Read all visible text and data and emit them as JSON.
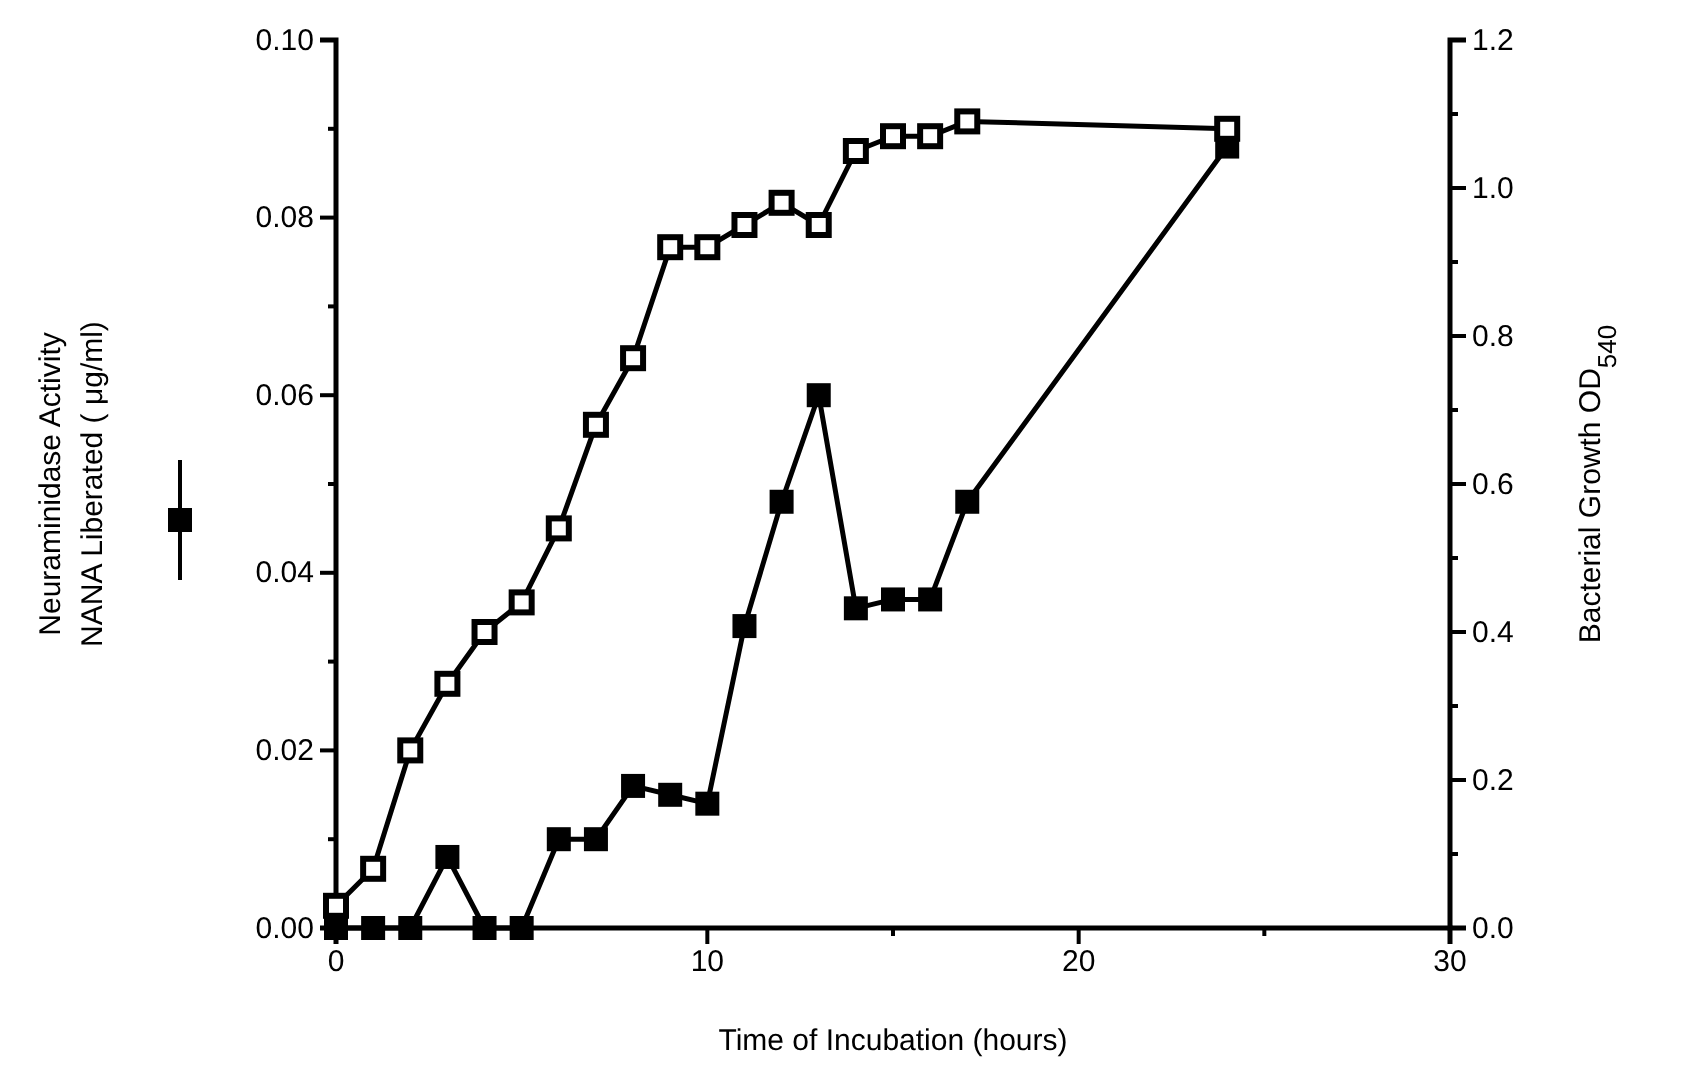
{
  "chart_data": {
    "type": "line",
    "xlabel": "Time of Incubation (hours)",
    "ylabel": "Neuraminidase Activity\nNANA Liberated ( μg/ml)",
    "y2label": "Bacterial Growth OD$_{540}$",
    "x": [
      0,
      1,
      2,
      3,
      4,
      5,
      6,
      7,
      8,
      9,
      10,
      11,
      12,
      13,
      14,
      15,
      16,
      17,
      24
    ],
    "series": [
      {
        "color": "#000000",
        "marker": "square",
        "values": [
          0,
          0,
          0,
          0.008,
          0,
          0,
          0.01,
          0.01,
          0.016,
          0.015,
          0.014,
          0.034,
          0.048,
          0.06,
          0.036,
          0.037,
          0.037,
          0.048,
          0.088
        ]
      },
      {
        "color": "#000000",
        "marker": "square",
        "axis": "y2",
        "values": [
          0.03,
          0.08,
          0.24,
          0.33,
          0.4,
          0.44,
          0.54,
          0.68,
          0.77,
          0.92,
          0.92,
          0.95,
          0.98,
          0.95,
          1.05,
          1.07,
          1.07,
          1.09,
          1.08
        ]
      }
    ],
    "xlim": [
      0,
      30
    ],
    "xticks": [
      0,
      {
        "value": 5,
        "label": null
      },
      10,
      {
        "value": 15,
        "label": null
      },
      20,
      {
        "value": 25,
        "label": null
      },
      30
    ],
    "ylim": [
      0,
      0.1
    ],
    "yticks": [
      {
        "value": 0,
        "label": "0.00"
      },
      {
        "value": 0.01,
        "label": null
      },
      {
        "value": 0.02,
        "label": "0.02"
      },
      {
        "value": 0.03,
        "label": null
      },
      {
        "value": 0.04,
        "label": "0.04"
      },
      {
        "value": 0.05,
        "label": null
      },
      {
        "value": 0.06,
        "label": "0.06"
      },
      {
        "value": 0.07,
        "label": null
      },
      {
        "value": 0.08,
        "label": "0.08"
      },
      {
        "value": 0.09,
        "label": null
      },
      {
        "value": 0.1,
        "label": "0.10"
      }
    ],
    "y2lim": [
      0,
      1.2
    ],
    "y2ticks": [
      {
        "value": 0,
        "label": "0.0"
      },
      {
        "value": 0.1,
        "label": null
      },
      {
        "value": 0.2,
        "label": "0.2"
      },
      {
        "value": 0.3,
        "label": null
      },
      {
        "value": 0.4,
        "label": "0.4"
      },
      {
        "value": 0.5,
        "label": null
      },
      {
        "value": 0.6,
        "label": "0.6"
      },
      {
        "value": 0.7,
        "label": null
      },
      {
        "value": 0.8,
        "label": "0.8"
      },
      {
        "value": 0.9,
        "label": null
      },
      {
        "value": 1.0,
        "label": "1.0"
      },
      {
        "value": 1.1,
        "label": null
      },
      {
        "value": 1.2,
        "label": "1.2"
      }
    ],
    "line_style": "solid"
  }
}
